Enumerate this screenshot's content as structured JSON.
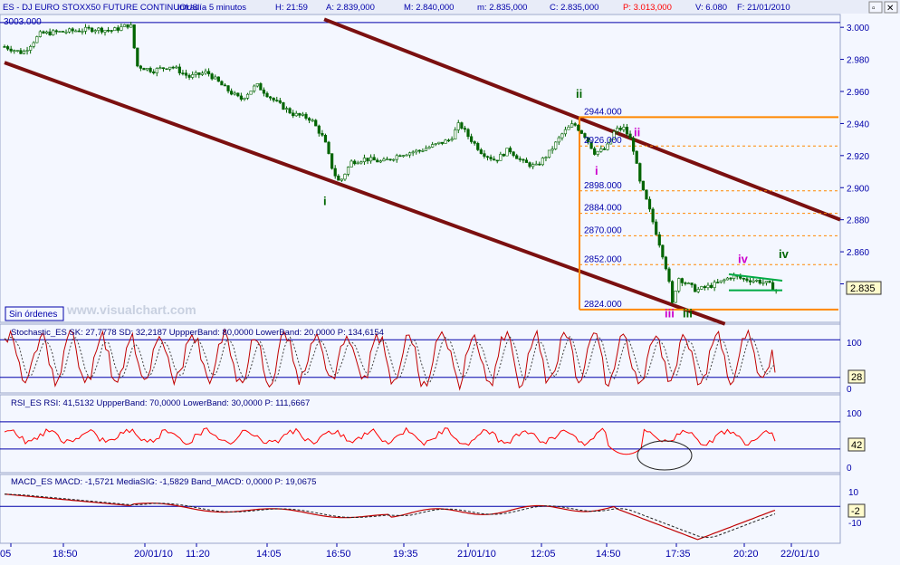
{
  "header": {
    "symbol": "ES - DJ EURO STOXX50 FUTURE CONTINUOUS",
    "interval": "Intradía 5 minutos",
    "hour": "H: 21:59",
    "ask": "A: 2.839,000",
    "max": "M: 2.840,000",
    "min": "m: 2.835,000",
    "close": "C: 2.835,000",
    "p": "P: 3.013,000",
    "vol": "V: 6.080",
    "date": "F: 21/01/2010",
    "window_buttons": [
      "▫",
      "✕"
    ]
  },
  "colors": {
    "background": "#f4f7ff",
    "price": "#006400",
    "channel": "#7b1010",
    "fib": "#ff8800",
    "stoch_line": "#c00000",
    "rsi_line": "#ff0000",
    "macd_line": "#c00000",
    "band": "#0000aa",
    "fib_label": "#0000aa",
    "wave_green": "#006600",
    "wave_magenta": "#cc00cc",
    "current_label": "#fffbcc"
  },
  "watermark": "www.visualchart.com",
  "sin_ordenes": "Sin órdenes",
  "price_panel": {
    "y_ticks": [
      "3.000",
      "2.980",
      "2.960",
      "2.940",
      "2.920",
      "2.900",
      "2.880",
      "2.860",
      "2.840"
    ],
    "current_value": "2.835",
    "top_line_label": "3003.000",
    "fib_levels": [
      "2944.000",
      "2926.000",
      "2898.000",
      "2884.000",
      "2870.000",
      "2852.000",
      "2824.000"
    ],
    "wave_labels": [
      {
        "text": "i",
        "color": "green"
      },
      {
        "text": "ii",
        "color": "green"
      },
      {
        "text": "iii",
        "color": "green"
      },
      {
        "text": "iv",
        "color": "green"
      },
      {
        "text": "i",
        "color": "magenta"
      },
      {
        "text": "ii",
        "color": "magenta"
      },
      {
        "text": "iii",
        "color": "magenta"
      },
      {
        "text": "iv",
        "color": "magenta"
      }
    ]
  },
  "stoch_panel": {
    "title": "Stochastic_ES  SK: 27,7778  SD: 32,2187  UppperBand: 80,0000  LowerBand: 20,0000  P: 134,6154",
    "ticks": [
      "100",
      "0"
    ],
    "current_value": "28"
  },
  "rsi_panel": {
    "title": "RSI_ES  RSI: 41,5132  UppperBand: 70,0000  LowerBand: 30,0000  P: 111,6667",
    "ticks": [
      "100",
      "0"
    ],
    "current_value": "42"
  },
  "macd_panel": {
    "title": "MACD_ES  MACD: -1,5721  MediaSIG: -1,5829  Band_MACD: 0,0000  P: 19,0675",
    "ticks": [
      "10",
      "-10"
    ],
    "current_value": "-2"
  },
  "x_axis": {
    "labels": [
      "05",
      "18:50",
      "20/01/10",
      "11:20",
      "14:05",
      "16:50",
      "19:35",
      "21/01/10",
      "12:05",
      "14:50",
      "17:35",
      "20:20",
      "22/01/10"
    ]
  },
  "chart_data": {
    "type": "candlestick",
    "x_labels": [
      "05",
      "18:50",
      "20/01/10",
      "11:20",
      "14:05",
      "16:50",
      "19:35",
      "21/01/10",
      "12:05",
      "14:50",
      "17:35",
      "20:20",
      "22/01/10"
    ],
    "y_range": [
      2816,
      3008
    ],
    "price_path": [
      [
        0,
        2988
      ],
      [
        20,
        2984
      ],
      [
        40,
        2996
      ],
      [
        60,
        2997
      ],
      [
        80,
        2998
      ],
      [
        100,
        2999
      ],
      [
        120,
        2998
      ],
      [
        140,
        3002
      ],
      [
        147,
        2976
      ],
      [
        165,
        2973
      ],
      [
        185,
        2976
      ],
      [
        205,
        2969
      ],
      [
        225,
        2972
      ],
      [
        245,
        2962
      ],
      [
        262,
        2955
      ],
      [
        280,
        2964
      ],
      [
        300,
        2954
      ],
      [
        320,
        2946
      ],
      [
        340,
        2943
      ],
      [
        355,
        2930
      ],
      [
        365,
        2910
      ],
      [
        372,
        2903
      ],
      [
        385,
        2916
      ],
      [
        400,
        2918
      ],
      [
        420,
        2916
      ],
      [
        440,
        2921
      ],
      [
        460,
        2923
      ],
      [
        480,
        2927
      ],
      [
        495,
        2930
      ],
      [
        505,
        2940
      ],
      [
        515,
        2932
      ],
      [
        530,
        2922
      ],
      [
        545,
        2917
      ],
      [
        560,
        2924
      ],
      [
        575,
        2916
      ],
      [
        590,
        2913
      ],
      [
        605,
        2922
      ],
      [
        620,
        2934
      ],
      [
        632,
        2940
      ],
      [
        645,
        2932
      ],
      [
        655,
        2922
      ],
      [
        668,
        2924
      ],
      [
        678,
        2936
      ],
      [
        688,
        2937
      ],
      [
        697,
        2928
      ],
      [
        706,
        2902
      ],
      [
        714,
        2890
      ],
      [
        722,
        2875
      ],
      [
        730,
        2860
      ],
      [
        737,
        2845
      ],
      [
        741,
        2826
      ],
      [
        748,
        2844
      ],
      [
        758,
        2840
      ],
      [
        768,
        2836
      ],
      [
        780,
        2838
      ],
      [
        795,
        2841
      ],
      [
        808,
        2845
      ],
      [
        820,
        2843
      ],
      [
        835,
        2842
      ],
      [
        848,
        2840
      ],
      [
        857,
        2836
      ]
    ],
    "channel": {
      "upper": [
        [
          355,
          3005
        ],
        [
          928,
          2880
        ]
      ],
      "lower": [
        [
          0,
          2978
        ],
        [
          800,
          2815
        ]
      ]
    },
    "fib_levels": [
      2944,
      2926,
      2898,
      2884,
      2870,
      2852,
      2824
    ],
    "stochastic": {
      "sk": 27.7778,
      "sd": 32.2187,
      "upper": 80,
      "lower": 20,
      "range": [
        -5,
        105
      ]
    },
    "rsi": {
      "rsi": 41.5132,
      "upper": 70,
      "lower": 30,
      "range": [
        -5,
        110
      ]
    },
    "macd": {
      "macd": -1.5721,
      "signal": -1.5829,
      "band": 0,
      "range": [
        -15,
        13
      ]
    }
  }
}
